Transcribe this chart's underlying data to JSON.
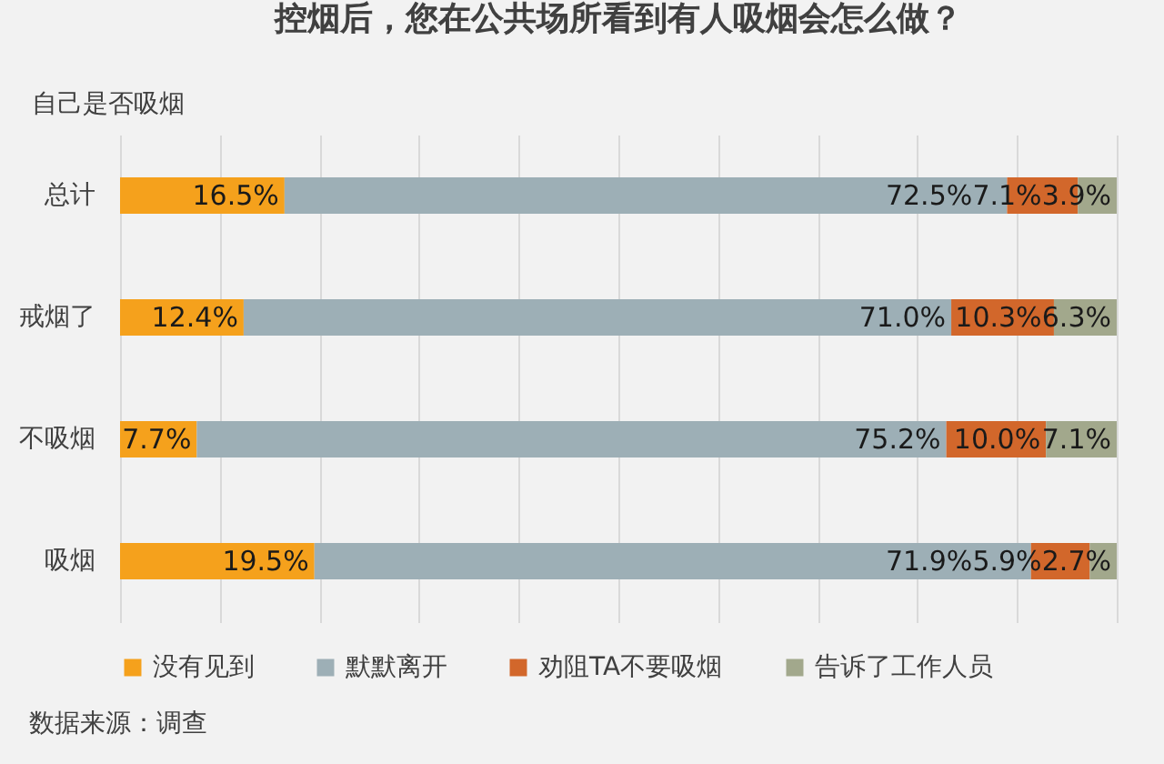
{
  "chart_data": {
    "type": "bar",
    "orientation": "horizontal",
    "stacked": true,
    "title": "控烟后，您在公共场所看到有人吸烟会怎么做？",
    "ylabel": "自己是否吸烟",
    "categories": [
      "总计",
      "戒烟了",
      "不吸烟",
      "吸烟"
    ],
    "series": [
      {
        "name": "没有见到",
        "color": "#f5a11c",
        "values": [
          16.5,
          12.4,
          7.7,
          19.5
        ],
        "value_labels": [
          "16.5%",
          "12.4%",
          "7.7%",
          "19.5%"
        ]
      },
      {
        "name": "默默离开",
        "color": "#9dafb6",
        "values": [
          72.5,
          71.0,
          75.2,
          71.9
        ],
        "value_labels": [
          "72.5%",
          "71.0%",
          "75.2%",
          "71.9%"
        ]
      },
      {
        "name": "劝阻TA不要吸烟",
        "color": "#d2672b",
        "values": [
          7.1,
          10.3,
          10.0,
          5.9
        ],
        "value_labels": [
          "7.1%",
          "10.3%",
          "10.0%",
          "5.9%"
        ]
      },
      {
        "name": "告诉了工作人员",
        "color": "#a2a88c",
        "values": [
          3.9,
          6.3,
          7.1,
          2.7
        ],
        "value_labels": [
          "3.9%",
          "6.3%",
          "7.1%",
          "2.7%"
        ]
      }
    ],
    "xlim": [
      0,
      100
    ],
    "xticks": [
      {
        "value": 0,
        "label": null
      },
      {
        "value": 10,
        "label": null
      },
      {
        "value": 20,
        "label": null
      },
      {
        "value": 30,
        "label": null
      },
      {
        "value": 40,
        "label": null
      },
      {
        "value": 50,
        "label": null
      },
      {
        "value": 60,
        "label": null
      },
      {
        "value": 70,
        "label": null
      },
      {
        "value": 80,
        "label": null
      },
      {
        "value": 90,
        "label": null
      },
      {
        "value": 100,
        "label": null
      }
    ],
    "grid": "x",
    "tick_labels": "y",
    "legend": "bottom",
    "annotations": [
      "数据来源：调查"
    ]
  }
}
